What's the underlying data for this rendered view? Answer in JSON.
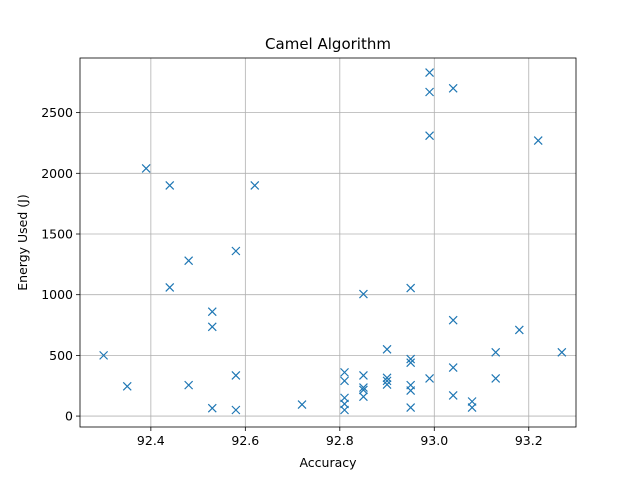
{
  "chart_data": {
    "type": "scatter",
    "title": "Camel Algorithm",
    "xlabel": "Accuracy",
    "ylabel": "Energy Used (J)",
    "xlim": [
      92.25,
      93.3
    ],
    "ylim": [
      -90,
      2950
    ],
    "xticks": [
      "92.4",
      "92.6",
      "92.8",
      "93.0",
      "93.2"
    ],
    "yticks": [
      "0",
      "500",
      "1000",
      "1500",
      "2000",
      "2500"
    ],
    "grid": true,
    "marker": "x",
    "color": "#1f77b4",
    "points": [
      [
        92.3,
        500
      ],
      [
        92.35,
        245
      ],
      [
        92.39,
        2040
      ],
      [
        92.44,
        1900
      ],
      [
        92.44,
        1060
      ],
      [
        92.48,
        1280
      ],
      [
        92.48,
        255
      ],
      [
        92.53,
        860
      ],
      [
        92.53,
        735
      ],
      [
        92.53,
        65
      ],
      [
        92.58,
        1360
      ],
      [
        92.58,
        335
      ],
      [
        92.58,
        50
      ],
      [
        92.62,
        1900
      ],
      [
        92.72,
        95
      ],
      [
        92.81,
        360
      ],
      [
        92.81,
        290
      ],
      [
        92.81,
        150
      ],
      [
        92.81,
        100
      ],
      [
        92.81,
        50
      ],
      [
        92.85,
        1005
      ],
      [
        92.85,
        335
      ],
      [
        92.85,
        235
      ],
      [
        92.85,
        215
      ],
      [
        92.85,
        160
      ],
      [
        92.9,
        550
      ],
      [
        92.9,
        315
      ],
      [
        92.9,
        290
      ],
      [
        92.9,
        260
      ],
      [
        92.95,
        1055
      ],
      [
        92.95,
        470
      ],
      [
        92.95,
        440
      ],
      [
        92.95,
        255
      ],
      [
        92.95,
        210
      ],
      [
        92.95,
        70
      ],
      [
        92.99,
        2830
      ],
      [
        92.99,
        2670
      ],
      [
        92.99,
        2310
      ],
      [
        92.99,
        310
      ],
      [
        93.04,
        2700
      ],
      [
        93.04,
        790
      ],
      [
        93.04,
        400
      ],
      [
        93.04,
        170
      ],
      [
        93.08,
        120
      ],
      [
        93.08,
        70
      ],
      [
        93.13,
        525
      ],
      [
        93.13,
        310
      ],
      [
        93.18,
        710
      ],
      [
        93.22,
        2270
      ],
      [
        93.27,
        525
      ]
    ]
  }
}
